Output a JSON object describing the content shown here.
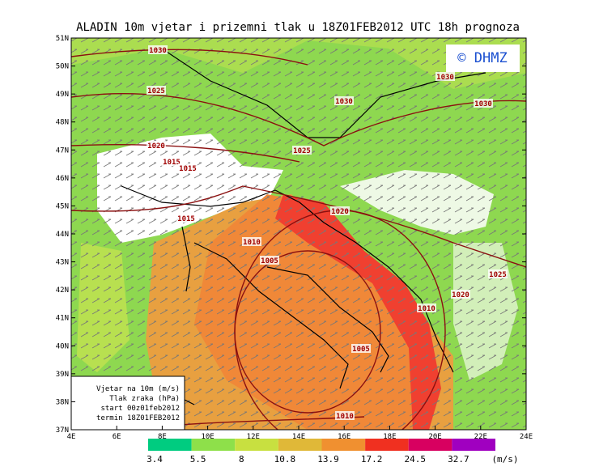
{
  "title": "ALADIN 10m vjetar i prizemni tlak u 18Z01FEB2012 UTC 18h prognoza",
  "copyright": "© DHMZ",
  "lat_labels": [
    "51N",
    "50N",
    "49N",
    "48N",
    "47N",
    "46N",
    "45N",
    "44N",
    "43N",
    "42N",
    "41N",
    "40N",
    "39N",
    "38N",
    "37N"
  ],
  "lon_labels": [
    "4E",
    "6E",
    "8E",
    "10E",
    "12E",
    "14E",
    "16E",
    "18E",
    "20E",
    "22E",
    "24E"
  ],
  "isobar_labels": [
    "1030",
    "1030",
    "1030",
    "1030",
    "1025",
    "1025",
    "1020",
    "1015",
    "1015",
    "1015",
    "1020",
    "1010",
    "1005",
    "1010",
    "1020",
    "1025",
    "1005",
    "1010"
  ],
  "info_box": [
    "Vjetar na 10m (m/s)",
    "Tlak zraka (hPa)",
    "start 00z01feb2012",
    "termin 18Z01FEB2012"
  ],
  "colorbar": {
    "labels": [
      "3.4",
      "5.5",
      "8",
      "10.8",
      "13.9",
      "17.2",
      "24.5",
      "32.7"
    ],
    "unit": "(m/s)",
    "colors": [
      "#00cc80",
      "#8ee04a",
      "#c8e040",
      "#e0b838",
      "#f09030",
      "#f03020",
      "#d80060",
      "#a000c0"
    ]
  }
}
